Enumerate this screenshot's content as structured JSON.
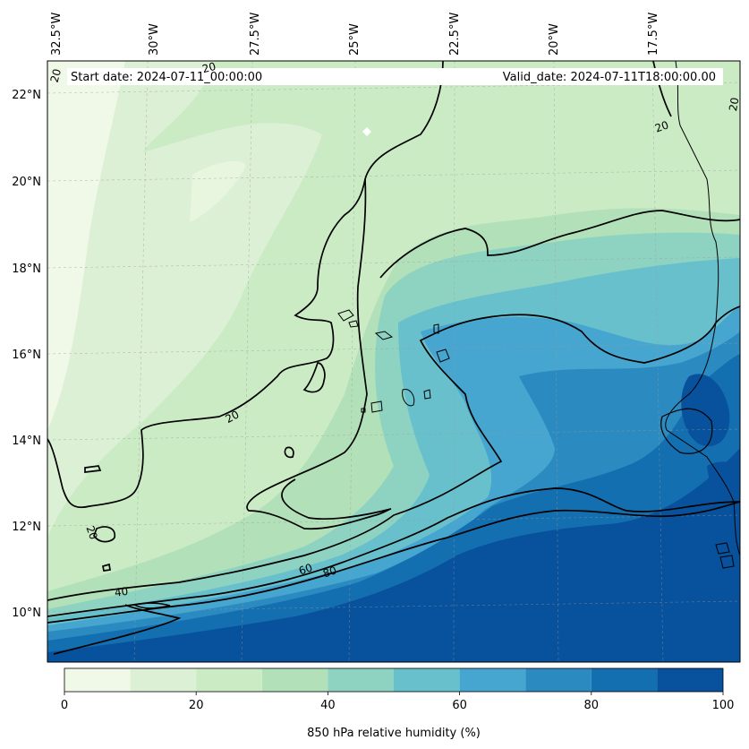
{
  "header": {
    "start_date": "Start date: 2024-07-11_00:00:00",
    "valid_date": "Valid_date: 2024-07-11T18:00:00.00"
  },
  "axes": {
    "lon_labels": [
      "32.5°W",
      "30°W",
      "27.5°W",
      "25°W",
      "22.5°W",
      "20°W",
      "17.5°W"
    ],
    "lat_labels": [
      "22°N",
      "20°N",
      "18°N",
      "16°N",
      "14°N",
      "12°N",
      "10°N"
    ]
  },
  "contour_labels": [
    "20",
    "20",
    "20",
    "20",
    "20",
    "40",
    "60",
    "80"
  ],
  "colorbar": {
    "label": "850 hPa relative humidity (%)",
    "ticks": [
      "0",
      "20",
      "40",
      "60",
      "80",
      "100"
    ],
    "levels": [
      0,
      10,
      20,
      30,
      40,
      50,
      60,
      70,
      80,
      90,
      100
    ],
    "colors": [
      "#f0f9e8",
      "#dcf0d5",
      "#cbebc5",
      "#b2e0b8",
      "#8ed3c2",
      "#67c0cb",
      "#46a6d0",
      "#2b8bc0",
      "#136fb0",
      "#08519c"
    ]
  }
}
